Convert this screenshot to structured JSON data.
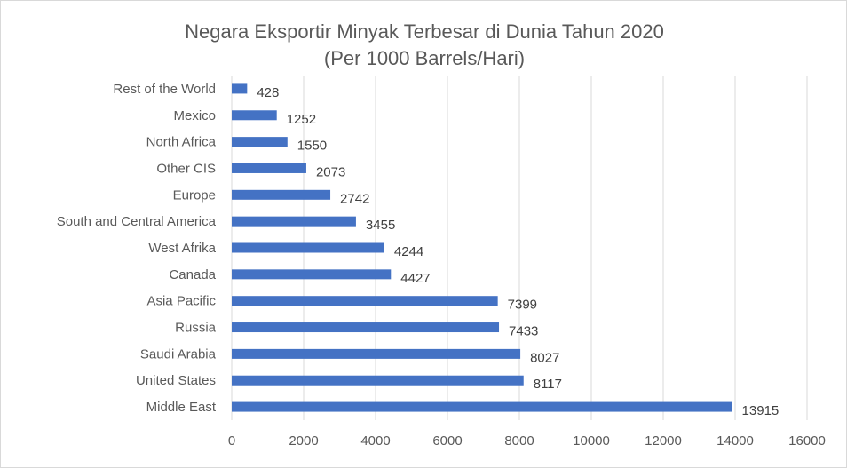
{
  "chart_data": {
    "type": "bar",
    "orientation": "horizontal",
    "title": "Negara Eksportir Minyak Terbesar di Dunia Tahun 2020",
    "subtitle": "(Per 1000 Barrels/Hari)",
    "categories": [
      "Rest of the World",
      "Mexico",
      "North Africa",
      "Other CIS",
      "Europe",
      "South and Central America",
      "West Afrika",
      "Canada",
      "Asia Pacific",
      "Russia",
      "Saudi Arabia",
      "United States",
      "Middle East"
    ],
    "values": [
      428,
      1252,
      1550,
      2073,
      2742,
      3455,
      4244,
      4427,
      7399,
      7433,
      8027,
      8117,
      13915
    ],
    "xlim": [
      0,
      16000
    ],
    "xticks": [
      0,
      2000,
      4000,
      6000,
      8000,
      10000,
      12000,
      14000,
      16000
    ],
    "grid": true,
    "legend": "none",
    "bar_color": "#4472c4",
    "grid_color": "#d9d9d9"
  }
}
